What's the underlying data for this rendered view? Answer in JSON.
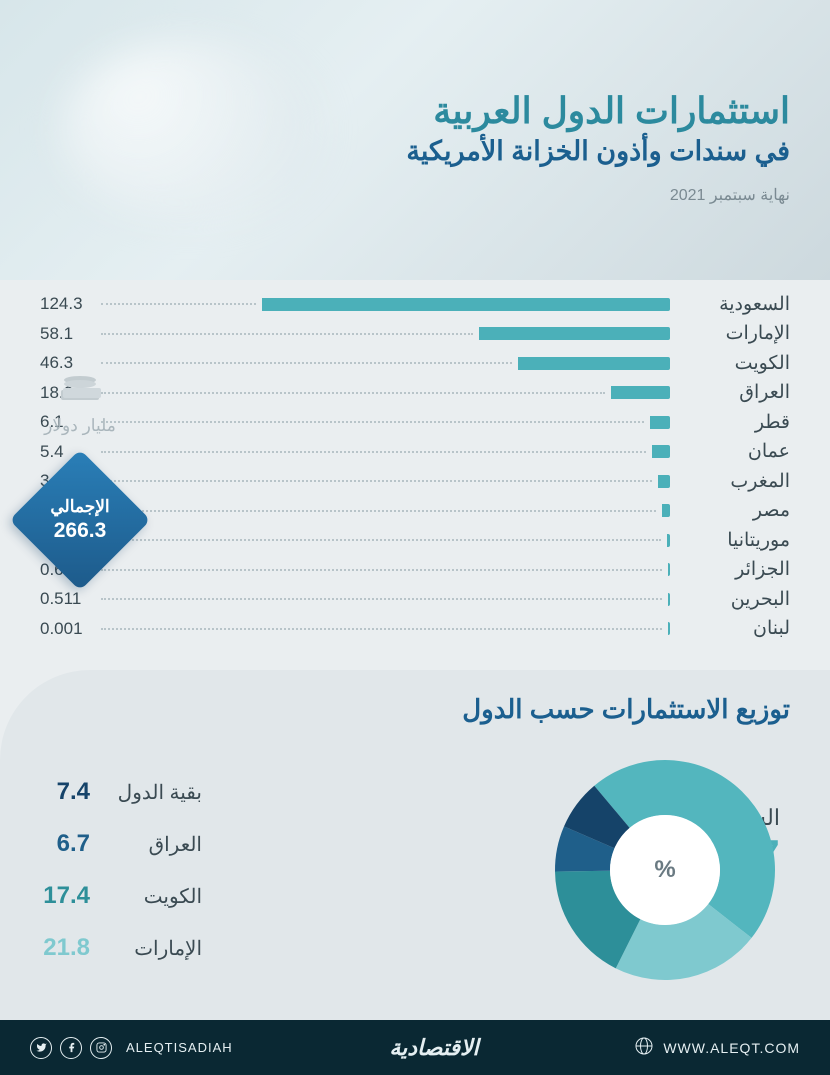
{
  "header": {
    "title_main": "استثمارات الدول العربية",
    "title_sub": "في سندات وأذون الخزانة الأمريكية",
    "date": "نهاية سبتمبر 2021",
    "title_main_color": "#2c8a9e",
    "title_sub_color": "#1b5f8f",
    "date_color": "#7a8a92"
  },
  "unit": {
    "label": "مليار دولار",
    "icon": "💵"
  },
  "total": {
    "label": "الإجمالي",
    "value": "266.3",
    "bg_gradient": [
      "#2a7fb8",
      "#1d5a8a"
    ]
  },
  "bar_chart": {
    "type": "bar",
    "bar_color": "#4bb0b9",
    "dot_color": "#b8c4c9",
    "text_color": "#3a4a52",
    "label_fontsize": 19,
    "value_fontsize": 17,
    "max_value": 140,
    "items": [
      {
        "label": "السعودية",
        "value": 124.3,
        "display": "124.3"
      },
      {
        "label": "الإمارات",
        "value": 58.1,
        "display": "58.1"
      },
      {
        "label": "الكويت",
        "value": 46.3,
        "display": "46.3"
      },
      {
        "label": "العراق",
        "value": 18.0,
        "display": "18.0"
      },
      {
        "label": "قطر",
        "value": 6.1,
        "display": "6.1"
      },
      {
        "label": "عمان",
        "value": 5.4,
        "display": "5.4"
      },
      {
        "label": "المغرب",
        "value": 3.8,
        "display": "3.8"
      },
      {
        "label": "مصر",
        "value": 2.3,
        "display": "2.3"
      },
      {
        "label": "موريتانيا",
        "value": 0.93,
        "display": "0.930"
      },
      {
        "label": "الجزائر",
        "value": 0.681,
        "display": "0.681"
      },
      {
        "label": "البحرين",
        "value": 0.511,
        "display": "0.511"
      },
      {
        "label": "لبنان",
        "value": 0.001,
        "display": "0.001"
      }
    ]
  },
  "donut": {
    "type": "pie",
    "title": "توزيع الاستثمارات حسب الدول",
    "title_color": "#1b5f8f",
    "center_symbol": "%",
    "background_color": "#e1e7ea",
    "inner_radius": 55,
    "outer_radius": 110,
    "slices": [
      {
        "label": "السعودية",
        "value": 46.7,
        "color": "#53b6be",
        "lead": true
      },
      {
        "label": "الإمارات",
        "value": 21.8,
        "color": "#7fc9cf"
      },
      {
        "label": "الكويت",
        "value": 17.4,
        "color": "#2d8f99"
      },
      {
        "label": "العراق",
        "value": 6.7,
        "color": "#1f5f8a"
      },
      {
        "label": "بقية الدول",
        "value": 7.4,
        "color": "#154369"
      }
    ]
  },
  "footer": {
    "url": "WWW.ALEQT.COM",
    "logo": "الاقتصادية",
    "handle": "ALEQTISADIAH",
    "bg_color": "#0a2833",
    "text_color": "#e5eff2"
  }
}
